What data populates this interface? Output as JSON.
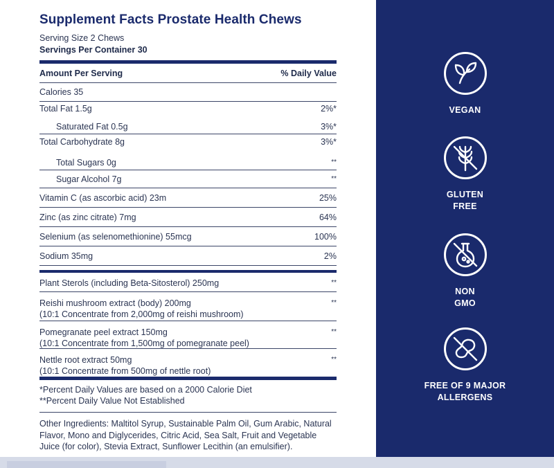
{
  "facts": {
    "title": "Supplement Facts Prostate Health Chews",
    "serving_size": "Serving Size 2 Chews",
    "servings_per_container": "Servings Per Container 30",
    "header_amount": "Amount Per Serving",
    "header_dv": "% Daily Value",
    "rows": [
      {
        "label": "Calories 35",
        "value": ""
      },
      {
        "label": "Total Fat 1.5g",
        "value": "2%*"
      },
      {
        "label": "Saturated Fat 0.5g",
        "value": "3%*"
      },
      {
        "label": "Total Carbohydrate 8g",
        "value": "3%*"
      },
      {
        "label": "Total Sugars 0g",
        "value": "**"
      },
      {
        "label": "Sugar Alcohol 7g",
        "value": "**"
      },
      {
        "label": "Vitamin C (as ascorbic acid) 23m",
        "value": "25%"
      },
      {
        "label": "Zinc (as zinc citrate) 7mg",
        "value": "64%"
      },
      {
        "label": "Selenium (as selenomethionine) 55mcg",
        "value": "100%"
      },
      {
        "label": "Sodium 35mg",
        "value": "2%"
      }
    ],
    "extra_rows": [
      {
        "line1": "Plant Sterols (including Beta-Sitosterol) 250mg",
        "line2": "",
        "value": "**"
      },
      {
        "line1": "Reishi mushroom extract (body) 200mg",
        "line2": "(10:1 Concentrate from 2,000mg of reishi mushroom)",
        "value": "**"
      },
      {
        "line1": "Pomegranate peel extract 150mg",
        "line2": "(10:1 Concentrate from 1,500mg of pomegranate peel)",
        "value": "**"
      },
      {
        "line1": "Nettle root extract 50mg",
        "line2": "(10:1 Concentrate from 500mg of nettle root)",
        "value": "**"
      }
    ],
    "footnote1": "*Percent Daily Values are based on a 2000 Calorie Diet",
    "footnote2": "**Percent Daily Value Not Established",
    "other_ingredients": "Other Ingredients: Maltitol Syrup, Sustainable Palm Oil, Gum Arabic, Natural Flavor, Mono and Diglycerides, Citric Acid, Sea Salt, Fruit and Vegetable Juice (for color), Stevia Extract, Sunflower Lecithin (an emulsifier)."
  },
  "badges": [
    {
      "icon": "leaf-icon",
      "label": "VEGAN"
    },
    {
      "icon": "no-wheat-icon",
      "label": "GLUTEN\nFREE"
    },
    {
      "icon": "no-gmo-flask-icon",
      "label": "NON\nGMO"
    },
    {
      "icon": "no-peanut-icon",
      "label": "FREE OF 9 MAJOR\nALLERGENS"
    }
  ],
  "colors": {
    "navy": "#1a2a6c",
    "text": "#2a3452",
    "white": "#ffffff"
  }
}
